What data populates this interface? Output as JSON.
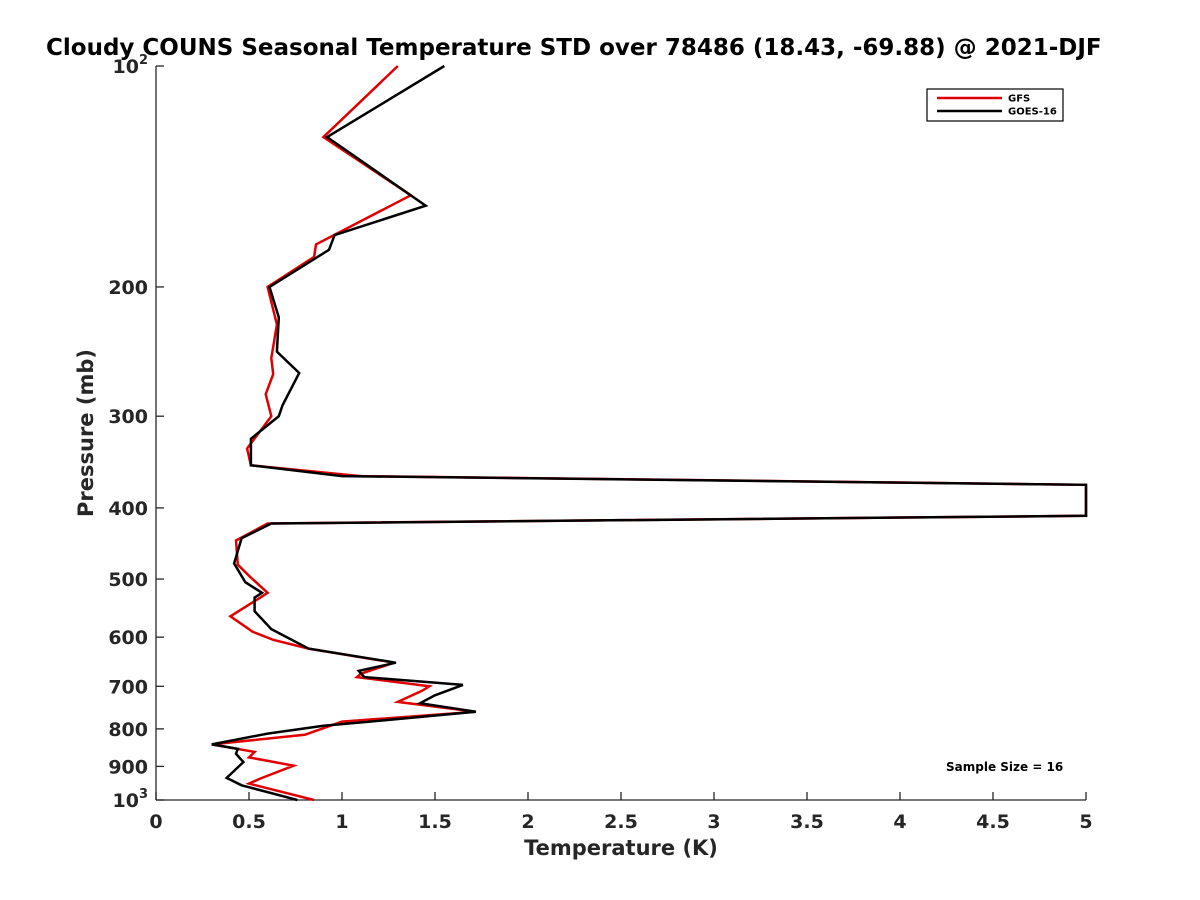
{
  "chart_data": {
    "type": "line",
    "title": "Cloudy COUNS Seasonal Temperature STD over 78486 (18.43, -69.88) @ 2021-DJF",
    "xlabel": "Temperature (K)",
    "ylabel": "Pressure (mb)",
    "xlim": [
      0,
      5
    ],
    "ylim": [
      1000,
      100
    ],
    "yscale": "log",
    "x_ticks": [
      "0",
      "0.5",
      "1",
      "1.5",
      "2",
      "2.5",
      "3",
      "3.5",
      "4",
      "4.5",
      "5"
    ],
    "y_ticks": [
      {
        "value": 100,
        "base": "10",
        "exp": "2"
      },
      {
        "value": 200,
        "label": "200"
      },
      {
        "value": 300,
        "label": "300"
      },
      {
        "value": 400,
        "label": "400"
      },
      {
        "value": 500,
        "label": "500"
      },
      {
        "value": 600,
        "label": "600"
      },
      {
        "value": 700,
        "label": "700"
      },
      {
        "value": 800,
        "label": "800"
      },
      {
        "value": 900,
        "label": "900"
      },
      {
        "value": 1000,
        "base": "10",
        "exp": "3"
      }
    ],
    "legend_location": "top-right",
    "annotation": "Sample Size = 16",
    "series": [
      {
        "name": "GFS",
        "color": "#e00000",
        "points": [
          [
            1.3,
            100
          ],
          [
            0.9,
            125
          ],
          [
            1.37,
            150
          ],
          [
            0.86,
            175
          ],
          [
            0.85,
            182
          ],
          [
            0.6,
            200
          ],
          [
            0.65,
            225
          ],
          [
            0.62,
            250
          ],
          [
            0.63,
            263
          ],
          [
            0.59,
            280
          ],
          [
            0.62,
            300
          ],
          [
            0.49,
            332
          ],
          [
            0.51,
            350
          ],
          [
            1.1,
            362
          ],
          [
            5.0,
            372
          ],
          [
            5.0,
            410
          ],
          [
            0.6,
            420
          ],
          [
            0.43,
            443
          ],
          [
            0.44,
            478
          ],
          [
            0.5,
            495
          ],
          [
            0.6,
            522
          ],
          [
            0.55,
            532
          ],
          [
            0.4,
            562
          ],
          [
            0.52,
            590
          ],
          [
            0.63,
            605
          ],
          [
            0.82,
            622
          ],
          [
            1.28,
            650
          ],
          [
            1.1,
            673
          ],
          [
            1.08,
            680
          ],
          [
            1.47,
            700
          ],
          [
            1.43,
            710
          ],
          [
            1.3,
            735
          ],
          [
            1.72,
            758
          ],
          [
            1.0,
            782
          ],
          [
            0.95,
            790
          ],
          [
            0.8,
            815
          ],
          [
            0.3,
            840
          ],
          [
            0.53,
            860
          ],
          [
            0.5,
            875
          ],
          [
            0.74,
            898
          ],
          [
            0.56,
            935
          ],
          [
            0.5,
            950
          ],
          [
            0.85,
            1000
          ]
        ]
      },
      {
        "name": "GOES-16",
        "color": "#000000",
        "points": [
          [
            1.55,
            100
          ],
          [
            0.92,
            125
          ],
          [
            1.45,
            155
          ],
          [
            0.96,
            170
          ],
          [
            0.93,
            178
          ],
          [
            0.61,
            200
          ],
          [
            0.66,
            220
          ],
          [
            0.65,
            245
          ],
          [
            0.77,
            262
          ],
          [
            0.68,
            290
          ],
          [
            0.66,
            300
          ],
          [
            0.51,
            322
          ],
          [
            0.51,
            350
          ],
          [
            1.0,
            362
          ],
          [
            5.0,
            372
          ],
          [
            5.0,
            410
          ],
          [
            0.62,
            420
          ],
          [
            0.46,
            440
          ],
          [
            0.42,
            476
          ],
          [
            0.48,
            505
          ],
          [
            0.57,
            522
          ],
          [
            0.53,
            530
          ],
          [
            0.53,
            553
          ],
          [
            0.62,
            585
          ],
          [
            0.82,
            622
          ],
          [
            1.29,
            650
          ],
          [
            1.09,
            667
          ],
          [
            1.12,
            680
          ],
          [
            1.65,
            697
          ],
          [
            1.5,
            720
          ],
          [
            1.42,
            738
          ],
          [
            1.72,
            758
          ],
          [
            1.15,
            782
          ],
          [
            0.9,
            792
          ],
          [
            0.6,
            812
          ],
          [
            0.3,
            840
          ],
          [
            0.44,
            852
          ],
          [
            0.43,
            865
          ],
          [
            0.47,
            888
          ],
          [
            0.38,
            933
          ],
          [
            0.46,
            955
          ],
          [
            0.76,
            1000
          ]
        ]
      }
    ]
  }
}
